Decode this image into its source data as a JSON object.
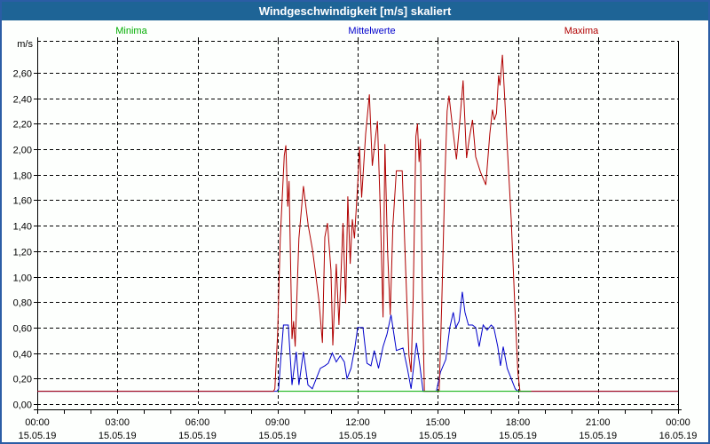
{
  "window": {
    "title": "Windgeschwindigkeit [m/s] skaliert"
  },
  "chart_data": {
    "type": "line",
    "title": "Windgeschwindigkeit [m/s] skaliert",
    "unit_label": "m/s",
    "grid": "dashed",
    "legend_position": "top",
    "legend": [
      {
        "label": "Minima",
        "color": "#00ad00"
      },
      {
        "label": "Mittelwerte",
        "color": "#0000cc"
      },
      {
        "label": "Maxima",
        "color": "#b00000"
      }
    ],
    "y_axis": {
      "min": 0,
      "max": 2.85,
      "tick_step": 0.2,
      "tick_labels": [
        "0,00",
        "0,20",
        "0,40",
        "0,60",
        "0,80",
        "1,00",
        "1,20",
        "1,40",
        "1,60",
        "1,80",
        "2,00",
        "2,20",
        "2,40",
        "2,60"
      ]
    },
    "x_axis": {
      "unit": "hours",
      "range_hours": [
        0,
        24
      ],
      "minor_tick_every_hours": 1,
      "gridline_every_hours": 3,
      "ticks": [
        {
          "hour": 0,
          "time": "00:00",
          "date": "15.05.19"
        },
        {
          "hour": 3,
          "time": "03:00",
          "date": "15.05.19"
        },
        {
          "hour": 6,
          "time": "06:00",
          "date": "15.05.19"
        },
        {
          "hour": 9,
          "time": "09:00",
          "date": "15.05.19"
        },
        {
          "hour": 12,
          "time": "12:00",
          "date": "15.05.19"
        },
        {
          "hour": 15,
          "time": "15:00",
          "date": "15.05.19"
        },
        {
          "hour": 18,
          "time": "18:00",
          "date": "15.05.19"
        },
        {
          "hour": 21,
          "time": "21:00",
          "date": "15.05.19"
        },
        {
          "hour": 24,
          "time": "00:00",
          "date": "16.05.19"
        }
      ]
    },
    "series": [
      {
        "name": "Mittelwerte",
        "color": "#0000cc",
        "points": [
          [
            0,
            0.1
          ],
          [
            8.98,
            0.1
          ],
          [
            9.04,
            0.12
          ],
          [
            9.1,
            0.3
          ],
          [
            9.22,
            0.62
          ],
          [
            9.4,
            0.62
          ],
          [
            9.54,
            0.15
          ],
          [
            9.7,
            0.41
          ],
          [
            9.8,
            0.15
          ],
          [
            9.97,
            0.41
          ],
          [
            10.14,
            0.15
          ],
          [
            10.3,
            0.12
          ],
          [
            10.45,
            0.2
          ],
          [
            10.6,
            0.28
          ],
          [
            10.77,
            0.3
          ],
          [
            10.9,
            0.32
          ],
          [
            11.05,
            0.4
          ],
          [
            11.2,
            0.33
          ],
          [
            11.35,
            0.38
          ],
          [
            11.5,
            0.33
          ],
          [
            11.6,
            0.2
          ],
          [
            11.75,
            0.28
          ],
          [
            11.9,
            0.45
          ],
          [
            12,
            0.6
          ],
          [
            12.2,
            0.6
          ],
          [
            12.35,
            0.32
          ],
          [
            12.5,
            0.3
          ],
          [
            12.62,
            0.42
          ],
          [
            12.78,
            0.28
          ],
          [
            12.95,
            0.45
          ],
          [
            13.1,
            0.55
          ],
          [
            13.25,
            0.7
          ],
          [
            13.45,
            0.42
          ],
          [
            13.7,
            0.44
          ],
          [
            13.86,
            0.28
          ],
          [
            14,
            0.12
          ],
          [
            14.2,
            0.48
          ],
          [
            14.33,
            0.3
          ],
          [
            14.45,
            0.1
          ],
          [
            14.95,
            0.1
          ],
          [
            15.1,
            0.25
          ],
          [
            15.3,
            0.35
          ],
          [
            15.45,
            0.6
          ],
          [
            15.58,
            0.72
          ],
          [
            15.68,
            0.6
          ],
          [
            15.8,
            0.65
          ],
          [
            15.92,
            0.88
          ],
          [
            16.02,
            0.72
          ],
          [
            16.15,
            0.62
          ],
          [
            16.3,
            0.62
          ],
          [
            16.42,
            0.6
          ],
          [
            16.55,
            0.45
          ],
          [
            16.7,
            0.62
          ],
          [
            16.85,
            0.58
          ],
          [
            17,
            0.62
          ],
          [
            17.1,
            0.6
          ],
          [
            17.25,
            0.45
          ],
          [
            17.35,
            0.3
          ],
          [
            17.45,
            0.45
          ],
          [
            17.6,
            0.28
          ],
          [
            17.75,
            0.2
          ],
          [
            17.9,
            0.12
          ],
          [
            18,
            0.1
          ],
          [
            24,
            0.1
          ]
        ]
      },
      {
        "name": "Maxima",
        "color": "#b00000",
        "points": [
          [
            0,
            0.1
          ],
          [
            8.85,
            0.1
          ],
          [
            8.9,
            0.12
          ],
          [
            9,
            0.55
          ],
          [
            9.1,
            1.3
          ],
          [
            9.25,
            1.95
          ],
          [
            9.31,
            2.03
          ],
          [
            9.38,
            1.55
          ],
          [
            9.43,
            1.75
          ],
          [
            9.54,
            0.51
          ],
          [
            9.6,
            0.65
          ],
          [
            9.66,
            0.45
          ],
          [
            9.8,
            1.3
          ],
          [
            9.97,
            1.71
          ],
          [
            10.15,
            1.4
          ],
          [
            10.3,
            1.22
          ],
          [
            10.42,
            1.03
          ],
          [
            10.55,
            0.81
          ],
          [
            10.68,
            0.48
          ],
          [
            10.77,
            1.31
          ],
          [
            10.87,
            1.42
          ],
          [
            11,
            1.05
          ],
          [
            11.07,
            0.46
          ],
          [
            11.2,
            1.1
          ],
          [
            11.3,
            0.62
          ],
          [
            11.45,
            1.42
          ],
          [
            11.55,
            0.79
          ],
          [
            11.63,
            1.63
          ],
          [
            11.72,
            1.1
          ],
          [
            11.8,
            1.45
          ],
          [
            11.88,
            1.3
          ],
          [
            12,
            1.72
          ],
          [
            12.07,
            2.02
          ],
          [
            12.15,
            1.62
          ],
          [
            12.3,
            2.12
          ],
          [
            12.44,
            2.43
          ],
          [
            12.55,
            1.87
          ],
          [
            12.67,
            2.1
          ],
          [
            12.74,
            2.22
          ],
          [
            12.85,
            1.5
          ],
          [
            12.95,
            0.68
          ],
          [
            13.02,
            2.04
          ],
          [
            13.12,
            1.2
          ],
          [
            13.22,
            0.7
          ],
          [
            13.32,
            1.4
          ],
          [
            13.45,
            1.83
          ],
          [
            13.67,
            1.83
          ],
          [
            13.8,
            1.05
          ],
          [
            13.92,
            0.38
          ],
          [
            14,
            0.25
          ],
          [
            14.08,
            0.85
          ],
          [
            14.18,
            2.1
          ],
          [
            14.24,
            2.2
          ],
          [
            14.3,
            1.9
          ],
          [
            14.35,
            2.08
          ],
          [
            14.42,
            0.9
          ],
          [
            14.5,
            0.1
          ],
          [
            15.05,
            0.1
          ],
          [
            15.15,
            0.8
          ],
          [
            15.27,
            1.8
          ],
          [
            15.35,
            2.3
          ],
          [
            15.42,
            2.42
          ],
          [
            15.55,
            2.18
          ],
          [
            15.7,
            1.92
          ],
          [
            15.82,
            2.2
          ],
          [
            15.95,
            2.54
          ],
          [
            16.08,
            1.93
          ],
          [
            16.18,
            2.08
          ],
          [
            16.3,
            2.23
          ],
          [
            16.42,
            1.94
          ],
          [
            16.6,
            1.82
          ],
          [
            16.8,
            1.72
          ],
          [
            16.95,
            2.12
          ],
          [
            17.05,
            2.31
          ],
          [
            17.12,
            2.23
          ],
          [
            17.2,
            2.28
          ],
          [
            17.28,
            2.58
          ],
          [
            17.33,
            2.5
          ],
          [
            17.42,
            2.74
          ],
          [
            17.52,
            2.35
          ],
          [
            17.62,
            1.95
          ],
          [
            17.75,
            1.45
          ],
          [
            17.88,
            0.8
          ],
          [
            18,
            0.25
          ],
          [
            18.08,
            0.1
          ],
          [
            24,
            0.1
          ]
        ]
      },
      {
        "name": "Minima",
        "color": "#00ad00",
        "points": [
          [
            9,
            0.1
          ],
          [
            18.5,
            0.1
          ]
        ]
      }
    ]
  }
}
